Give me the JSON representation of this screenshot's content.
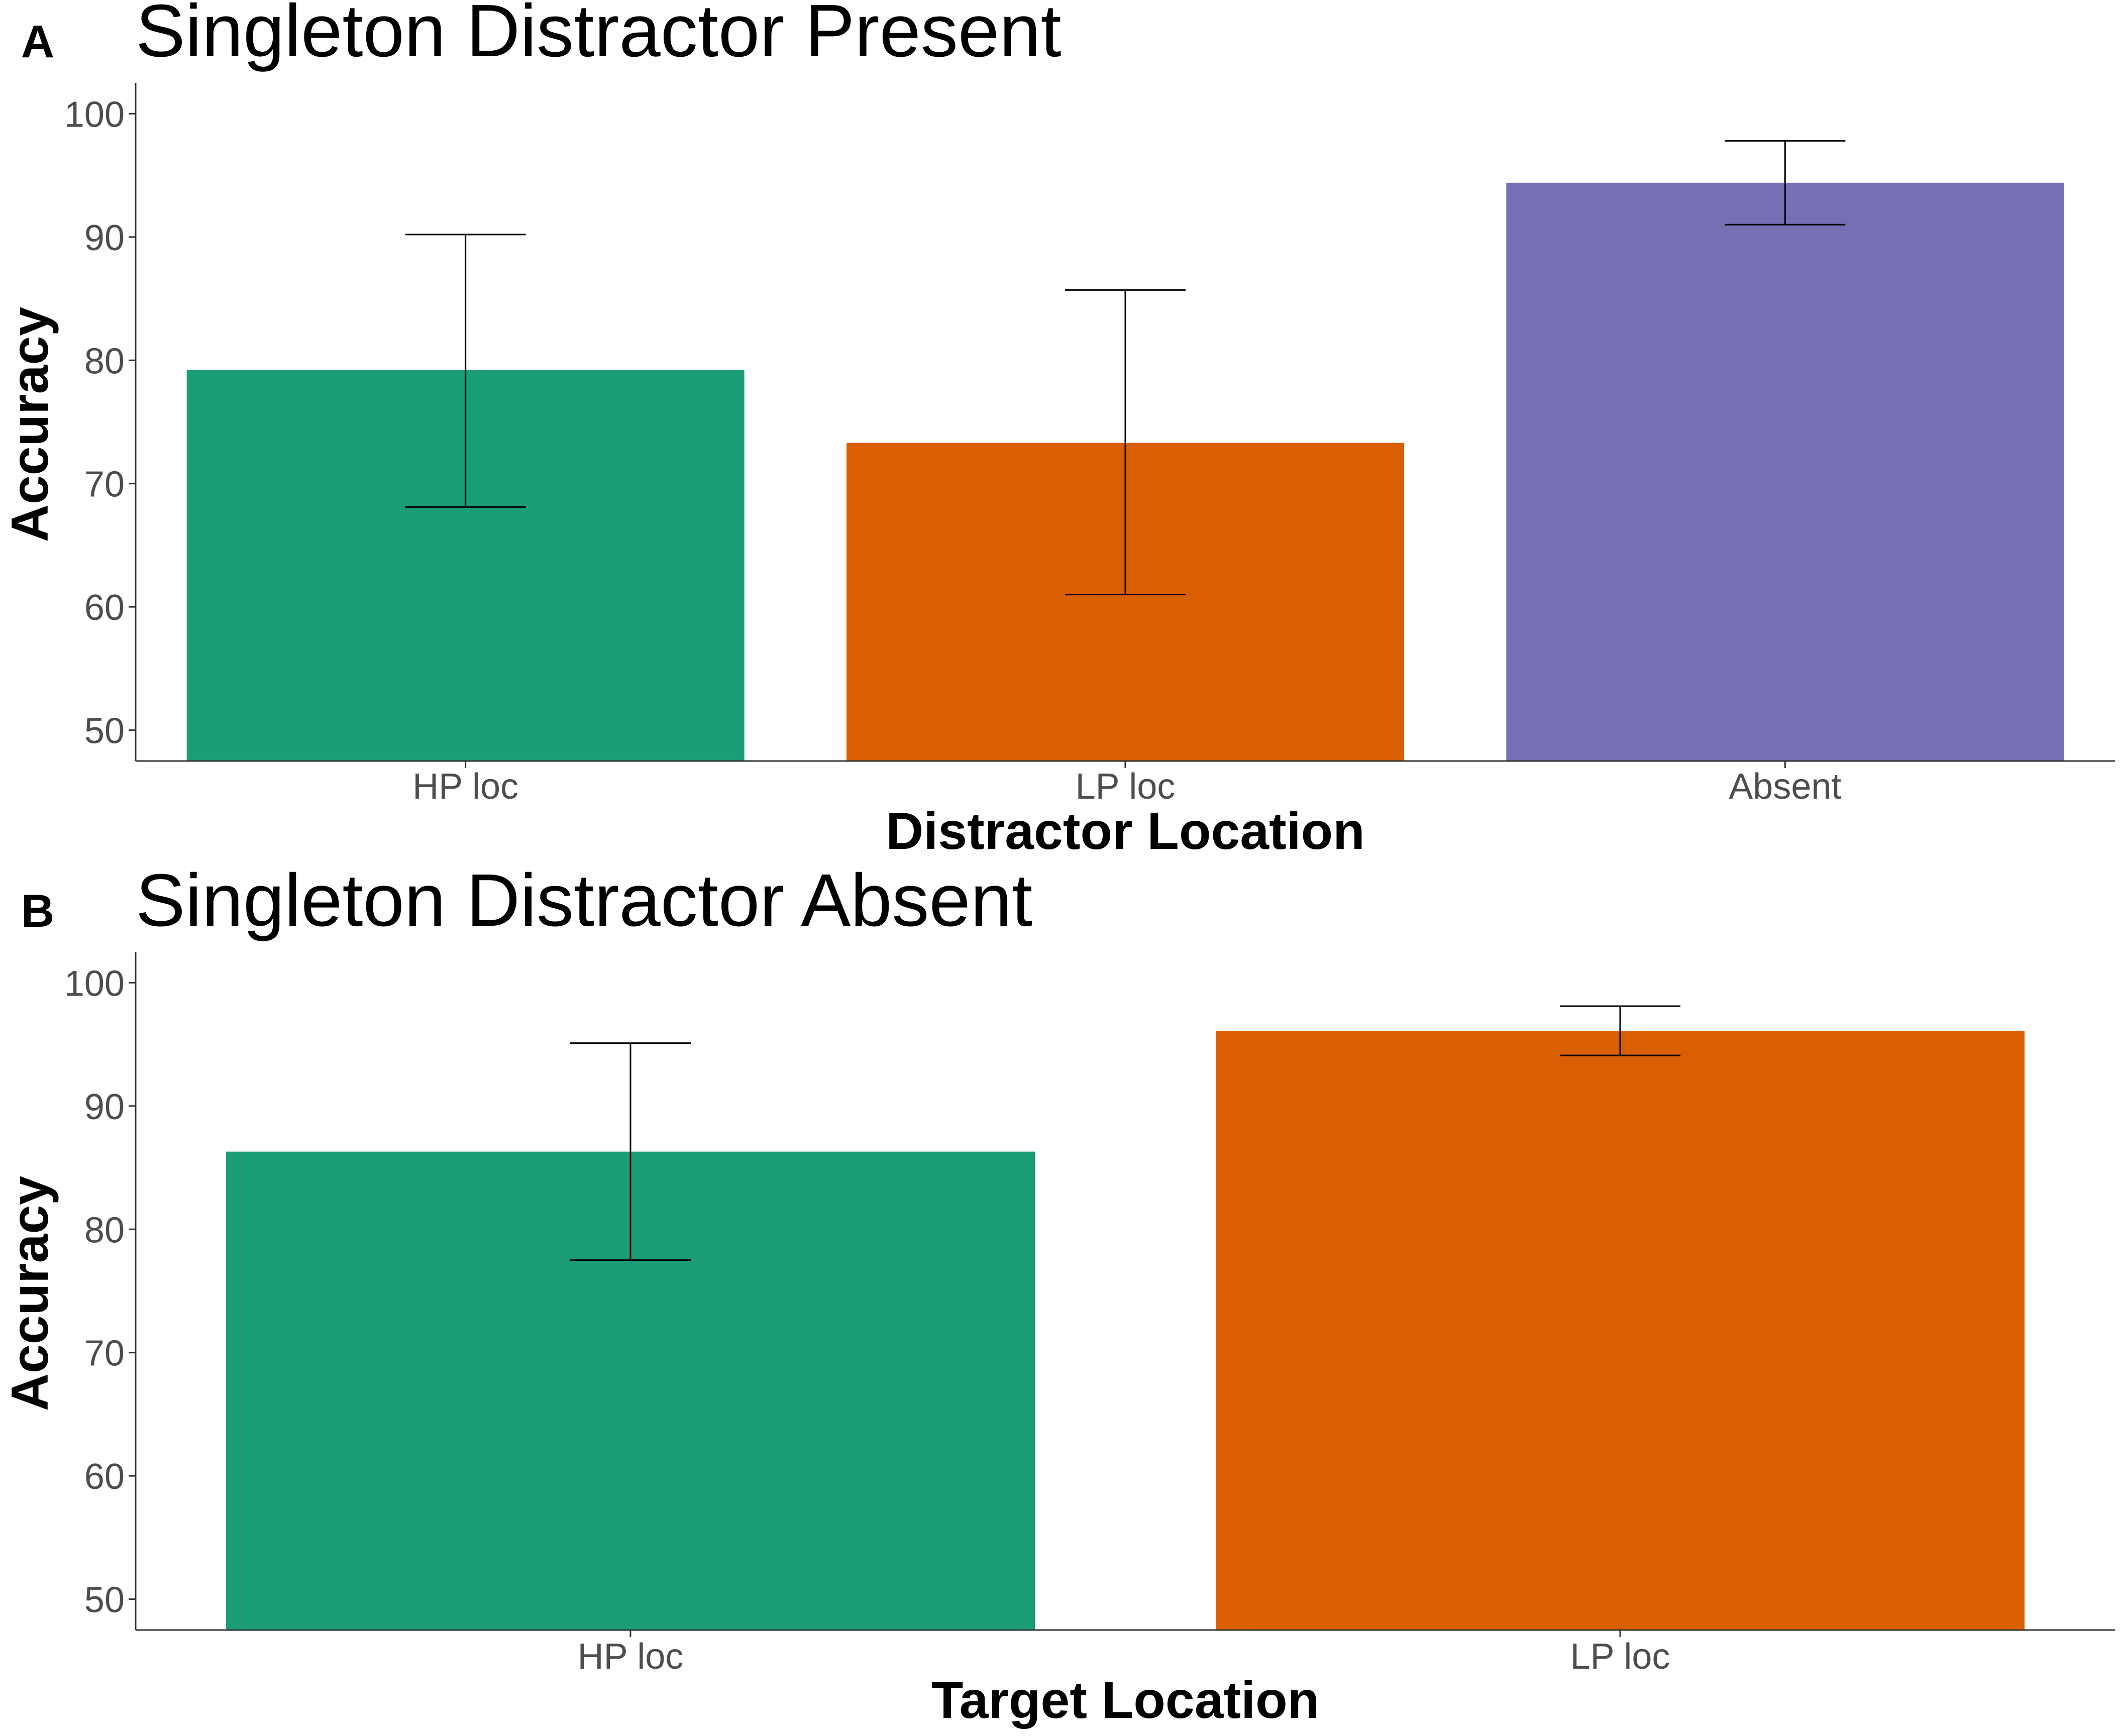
{
  "colors": {
    "hp": "#1b9e77",
    "lp": "#d95f02",
    "absent": "#7570b3",
    "axis": "#333333",
    "tick_text": "#4d4d4d",
    "errorbar": "#000000"
  },
  "chart_data": [
    {
      "type": "bar",
      "panel": "A",
      "title": "Singleton Distractor Present",
      "xlabel": "Distractor Location",
      "ylabel": "Accuracy",
      "categories": [
        "HP loc",
        "LP loc",
        "Absent"
      ],
      "values": [
        79.2,
        73.3,
        94.4
      ],
      "error_low": [
        68.1,
        61.0,
        91.0
      ],
      "error_high": [
        90.2,
        85.7,
        97.8
      ],
      "bar_colors": [
        "#1b9e77",
        "#d95f02",
        "#7570b3"
      ],
      "ylim": [
        47.5,
        102.5
      ],
      "yticks": [
        50,
        60,
        70,
        80,
        90,
        100
      ],
      "grid": false,
      "legend": "none"
    },
    {
      "type": "bar",
      "panel": "B",
      "title": "Singleton Distractor Absent",
      "xlabel": "Target Location",
      "ylabel": "Accuracy",
      "categories": [
        "HP loc",
        "LP loc"
      ],
      "values": [
        86.3,
        96.1
      ],
      "error_low": [
        77.5,
        94.1
      ],
      "error_high": [
        95.1,
        98.1
      ],
      "bar_colors": [
        "#1b9e77",
        "#d95f02"
      ],
      "ylim": [
        47.5,
        102.5
      ],
      "yticks": [
        50,
        60,
        70,
        80,
        90,
        100
      ],
      "grid": false,
      "legend": "none"
    }
  ]
}
